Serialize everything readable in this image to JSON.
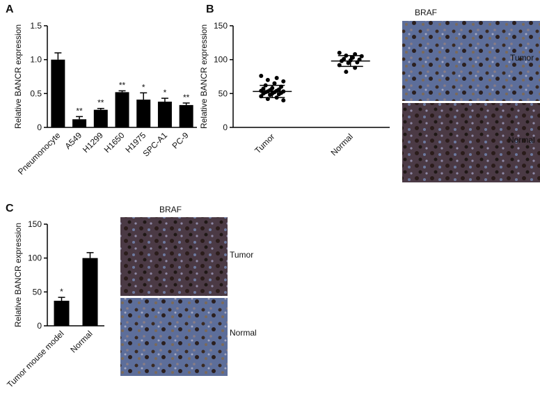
{
  "chart_data": [
    {
      "type": "bar",
      "panel": "A",
      "ylabel": "Relative BANCR expression",
      "categories": [
        "Pneumonocyte",
        "A549",
        "H1299",
        "H1650",
        "H1975",
        "SPC-A1",
        "PC-9"
      ],
      "values": [
        1.0,
        0.12,
        0.26,
        0.52,
        0.41,
        0.38,
        0.33
      ],
      "errors": [
        0.1,
        0.04,
        0.02,
        0.02,
        0.1,
        0.05,
        0.03
      ],
      "annotations": [
        null,
        "**",
        "**",
        "**",
        "*",
        "*",
        "**"
      ],
      "color": "#000000",
      "ylim": [
        0,
        1.5
      ],
      "yticks": [
        0,
        0.5,
        {
          "value": 1,
          "label": "1.0"
        },
        1.5
      ]
    },
    {
      "type": "dotplot",
      "panel": "B",
      "ylabel": "Relative BANCR expression",
      "categories": [
        "Tumor",
        "Normal"
      ],
      "points": [
        [
          76,
          73,
          70,
          68,
          65,
          62,
          60,
          58,
          57,
          56,
          55,
          54,
          54,
          53,
          53,
          52,
          52,
          51,
          50,
          50,
          49,
          48,
          46,
          44,
          42,
          40
        ],
        [
          110,
          108,
          106,
          105,
          103,
          101,
          100,
          99,
          98,
          96,
          95,
          92,
          88,
          82
        ]
      ],
      "means": [
        53,
        98
      ],
      "sd": [
        9,
        8
      ],
      "color": "#000000",
      "ylim": [
        0,
        150
      ],
      "yticks": [
        0,
        50,
        100,
        150
      ],
      "image_title": "BRAF",
      "image_labels": [
        "Tumor",
        "Normal"
      ]
    },
    {
      "type": "bar",
      "panel": "C",
      "ylabel": "Relative BANCR expression",
      "categories": [
        "Tumor mouse model",
        "Normal"
      ],
      "values": [
        37,
        100
      ],
      "errors": [
        5,
        8
      ],
      "annotations": [
        "*",
        null
      ],
      "color": "#000000",
      "ylim": [
        0,
        150
      ],
      "yticks": [
        0,
        50,
        100,
        150
      ],
      "image_title": "BRAF",
      "image_labels": [
        "Tumor",
        "Normal"
      ]
    }
  ]
}
